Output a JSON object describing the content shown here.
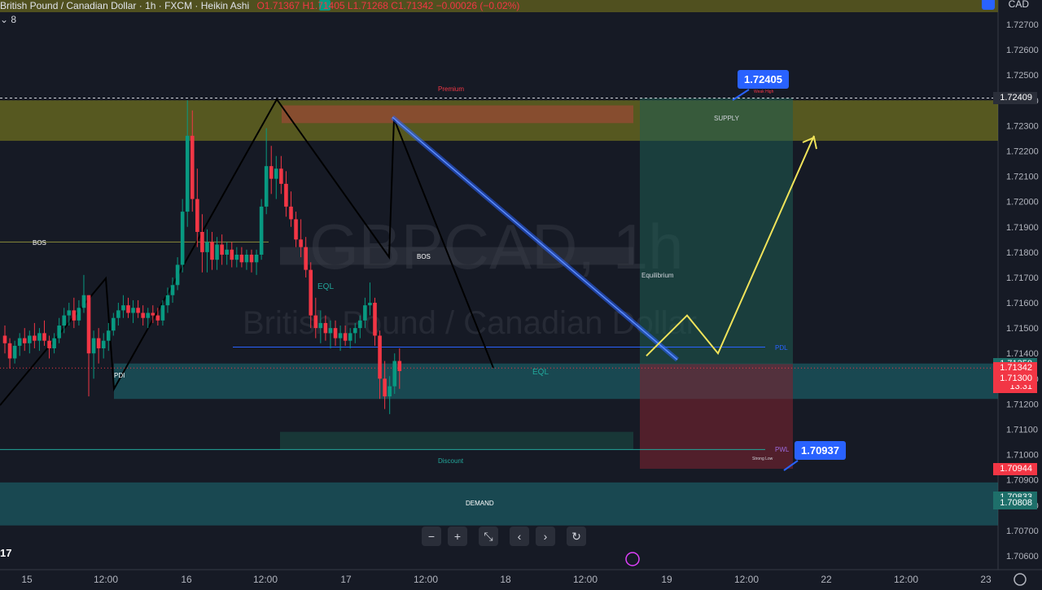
{
  "header": {
    "symbol_line": "British Pound / Canadian Dollar · 1h · FXCM · Heikin Ashi",
    "ohlc": "O1.71367 H1.71405 L1.71268 C1.71342 −0.00026 (−0.02%)",
    "currency": "CAD",
    "indicator_count": "8"
  },
  "watermark": {
    "symbol": "GBPCAD, 1h",
    "name": "British Pound / Canadian Dollar"
  },
  "callouts": {
    "high": "1.72405",
    "low": "1.70937"
  },
  "price_labels": [
    {
      "value": "1.72409",
      "color": "#2a2e39"
    },
    {
      "value": "1.71358",
      "color": "#1e6f6a"
    },
    {
      "value": "1.71342",
      "color": "#f23645"
    },
    {
      "value": "13:31",
      "color": "#f23645"
    },
    {
      "value": "1.71300",
      "color": "#f23645"
    },
    {
      "value": "1.70944",
      "color": "#f23645"
    },
    {
      "value": "1.70833",
      "color": "#1e6f6a"
    },
    {
      "value": "1.70808",
      "color": "#1e6f6a"
    }
  ],
  "toolbar": [
    "−",
    "+",
    "⤡",
    "‹",
    "›",
    "↻"
  ],
  "chart_data": {
    "type": "candlestick",
    "style": "Heikin Ashi",
    "timeframe": "1h",
    "ylim": [
      1.7055,
      1.7285
    ],
    "y_ticks": [
      "1.72700",
      "1.72600",
      "1.72500",
      "1.72400",
      "1.72300",
      "1.72200",
      "1.72100",
      "1.72000",
      "1.71900",
      "1.71800",
      "1.71700",
      "1.71600",
      "1.71500",
      "1.71400",
      "1.71300",
      "1.71200",
      "1.71100",
      "1.71000",
      "1.70900",
      "1.70800",
      "1.70700",
      "1.70600"
    ],
    "x_ticks": [
      "15",
      "12:00",
      "16",
      "12:00",
      "17",
      "12:00",
      "18",
      "12:00",
      "19",
      "12:00",
      "22",
      "12:00",
      "23"
    ],
    "colors": {
      "up": "#089981",
      "down": "#f23645"
    },
    "candles": [
      [
        1.7147,
        1.7151,
        1.714,
        1.7144
      ],
      [
        1.7144,
        1.7146,
        1.7134,
        1.7138
      ],
      [
        1.7138,
        1.7145,
        1.7136,
        1.7143
      ],
      [
        1.7143,
        1.7148,
        1.7139,
        1.7146
      ],
      [
        1.7146,
        1.715,
        1.7141,
        1.7144
      ],
      [
        1.7144,
        1.7149,
        1.714,
        1.7147
      ],
      [
        1.7147,
        1.7152,
        1.7142,
        1.7145
      ],
      [
        1.7145,
        1.715,
        1.7141,
        1.7148
      ],
      [
        1.7148,
        1.7153,
        1.7143,
        1.7145
      ],
      [
        1.7145,
        1.7147,
        1.7138,
        1.7142
      ],
      [
        1.7142,
        1.7148,
        1.714,
        1.7146
      ],
      [
        1.7146,
        1.7154,
        1.7144,
        1.7151
      ],
      [
        1.7151,
        1.7158,
        1.7148,
        1.7155
      ],
      [
        1.7155,
        1.716,
        1.7151,
        1.7157
      ],
      [
        1.7157,
        1.7162,
        1.715,
        1.7153
      ],
      [
        1.7153,
        1.7161,
        1.7151,
        1.7158
      ],
      [
        1.7158,
        1.7171,
        1.7156,
        1.7163
      ],
      [
        1.7163,
        1.7163,
        1.7123,
        1.714
      ],
      [
        1.714,
        1.7149,
        1.713,
        1.7146
      ],
      [
        1.7146,
        1.715,
        1.7136,
        1.7142
      ],
      [
        1.7142,
        1.7148,
        1.7138,
        1.7145
      ],
      [
        1.7145,
        1.7152,
        1.7141,
        1.7149
      ],
      [
        1.7149,
        1.7156,
        1.7147,
        1.7154
      ],
      [
        1.7154,
        1.716,
        1.7151,
        1.7157
      ],
      [
        1.7157,
        1.7163,
        1.7154,
        1.7159
      ],
      [
        1.7159,
        1.7162,
        1.7154,
        1.7156
      ],
      [
        1.7156,
        1.7161,
        1.7152,
        1.7158
      ],
      [
        1.7158,
        1.7161,
        1.7154,
        1.7156
      ],
      [
        1.7156,
        1.7159,
        1.7151,
        1.7154
      ],
      [
        1.7154,
        1.7158,
        1.715,
        1.7156
      ],
      [
        1.7156,
        1.7159,
        1.7152,
        1.7155
      ],
      [
        1.7155,
        1.7158,
        1.7151,
        1.7153
      ],
      [
        1.7153,
        1.7161,
        1.7151,
        1.7159
      ],
      [
        1.7159,
        1.7166,
        1.7156,
        1.7163
      ],
      [
        1.7163,
        1.717,
        1.716,
        1.7167
      ],
      [
        1.7167,
        1.7178,
        1.7165,
        1.7175
      ],
      [
        1.7175,
        1.7201,
        1.7172,
        1.7196
      ],
      [
        1.7196,
        1.724,
        1.719,
        1.7226
      ],
      [
        1.7226,
        1.7236,
        1.7196,
        1.7201
      ],
      [
        1.7201,
        1.7213,
        1.7182,
        1.7188
      ],
      [
        1.7188,
        1.7195,
        1.7172,
        1.718
      ],
      [
        1.718,
        1.7189,
        1.7172,
        1.7184
      ],
      [
        1.7184,
        1.7188,
        1.7173,
        1.7177
      ],
      [
        1.7177,
        1.7186,
        1.7173,
        1.7183
      ],
      [
        1.7183,
        1.7187,
        1.7175,
        1.7179
      ],
      [
        1.7179,
        1.7184,
        1.7175,
        1.7181
      ],
      [
        1.7181,
        1.7184,
        1.7174,
        1.7177
      ],
      [
        1.7177,
        1.7182,
        1.7174,
        1.7179
      ],
      [
        1.7179,
        1.7182,
        1.7174,
        1.7176
      ],
      [
        1.7176,
        1.7181,
        1.7173,
        1.7179
      ],
      [
        1.7179,
        1.7181,
        1.7172,
        1.7176
      ],
      [
        1.7176,
        1.7181,
        1.7171,
        1.7179
      ],
      [
        1.7179,
        1.7201,
        1.7177,
        1.7198
      ],
      [
        1.7198,
        1.7229,
        1.7195,
        1.7214
      ],
      [
        1.7214,
        1.7222,
        1.7203,
        1.7209
      ],
      [
        1.7209,
        1.7218,
        1.7201,
        1.7213
      ],
      [
        1.7213,
        1.7218,
        1.7203,
        1.7207
      ],
      [
        1.7207,
        1.7212,
        1.7194,
        1.7198
      ],
      [
        1.7198,
        1.7204,
        1.719,
        1.7193
      ],
      [
        1.7193,
        1.7196,
        1.7182,
        1.7185
      ],
      [
        1.7185,
        1.7193,
        1.7178,
        1.7182
      ],
      [
        1.7182,
        1.7186,
        1.717,
        1.7173
      ],
      [
        1.7173,
        1.7176,
        1.715,
        1.7155
      ],
      [
        1.7155,
        1.7162,
        1.7146,
        1.715
      ],
      [
        1.715,
        1.7157,
        1.7144,
        1.7152
      ],
      [
        1.7152,
        1.7155,
        1.7145,
        1.7148
      ],
      [
        1.7148,
        1.7153,
        1.7142,
        1.715
      ],
      [
        1.715,
        1.7153,
        1.7143,
        1.7146
      ],
      [
        1.7146,
        1.7151,
        1.7141,
        1.7148
      ],
      [
        1.7148,
        1.7151,
        1.7143,
        1.7145
      ],
      [
        1.7145,
        1.715,
        1.7142,
        1.7148
      ],
      [
        1.7148,
        1.7152,
        1.7144,
        1.715
      ],
      [
        1.715,
        1.7155,
        1.7146,
        1.7153
      ],
      [
        1.7153,
        1.7162,
        1.715,
        1.7159
      ],
      [
        1.7159,
        1.7168,
        1.7155,
        1.716
      ],
      [
        1.716,
        1.7162,
        1.7143,
        1.7147
      ],
      [
        1.7147,
        1.7149,
        1.7122,
        1.713
      ],
      [
        1.713,
        1.7137,
        1.7118,
        1.7123
      ],
      [
        1.7123,
        1.7131,
        1.7116,
        1.7127
      ],
      [
        1.7127,
        1.714,
        1.7124,
        1.7137
      ],
      [
        1.7137,
        1.7142,
        1.7126,
        1.7133
      ]
    ],
    "zones": [
      {
        "label": "SUPPLY",
        "from": 1.7224,
        "to": 1.724
      },
      {
        "label": "DEMAND",
        "from": 1.7072,
        "to": 1.7089
      },
      {
        "label": "",
        "from": 1.7122,
        "to": 1.7136
      }
    ],
    "levels": [
      {
        "label": "BOS",
        "value": 1.7184
      },
      {
        "label": "PDL",
        "value": 1.71425
      },
      {
        "label": "PWL",
        "value": 1.7102
      },
      {
        "label": "",
        "value": 1.72409
      }
    ],
    "annotations": [
      "Premium",
      "Weak High",
      "SUPPLY",
      "BOS",
      "BOS",
      "EQL",
      "EQL",
      "PDL",
      "PDI",
      "Equilibrium",
      "Discount",
      "PWL",
      "Strong Low",
      "DEMAND"
    ],
    "projection": {
      "label": "",
      "path": [
        1.7139,
        1.7155,
        1.714,
        1.7226
      ]
    },
    "risk_reward": {
      "entry": 1.71358,
      "target": 1.72409,
      "stop": 1.70944
    }
  }
}
